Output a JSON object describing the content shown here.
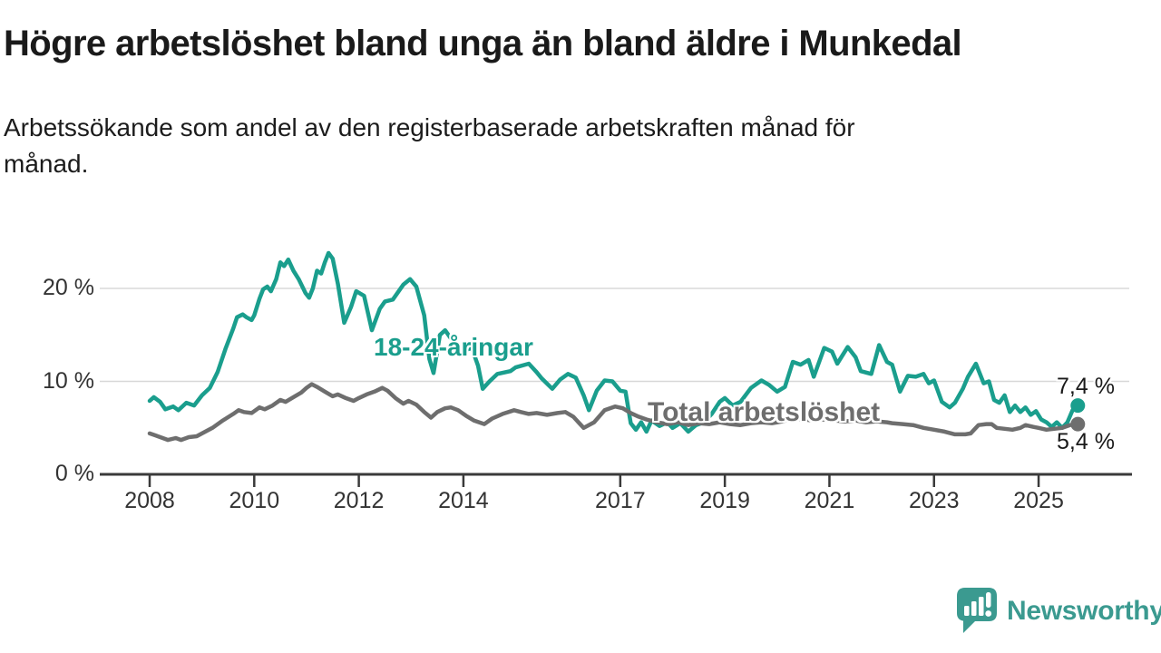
{
  "title": "Högre arbetslöshet bland unga än bland äldre i Munkedal",
  "subtitle": {
    "lines": [
      "Arbetssökande som andel av den registerbaserade arbetskraften månad för",
      "månad."
    ]
  },
  "branding": {
    "name": "Newsworthy",
    "icon": "chart-speech-bubble-icon",
    "color": "#3b9a90"
  },
  "colors": {
    "young_series": "#1a9e8d",
    "total_series": "#6e6e6e",
    "gridline": "#d8d8d8",
    "axis": "#3a3a3a",
    "text": "#1a1a1a"
  },
  "chart_data": {
    "type": "line",
    "title": "Högre arbetslöshet bland unga än bland äldre i Munkedal",
    "subtitle": "Arbetssökande som andel av den registerbaserade arbetskraften månad för månad.",
    "xlabel": "",
    "ylabel": "",
    "grid": "horizontal",
    "legend_position": "inline-labels",
    "xlim": [
      2007.0,
      2026.8
    ],
    "ylim": [
      0,
      25
    ],
    "x_ticks": [
      2008,
      2010,
      2012,
      2014,
      2017,
      2019,
      2021,
      2023,
      2025
    ],
    "y_ticks": [
      {
        "value": 20,
        "label": "20 %"
      },
      {
        "value": 10,
        "label": "10 %"
      },
      {
        "value": 0,
        "label": "0 %"
      }
    ],
    "series": [
      {
        "name": "18-24-åringar",
        "color": "#1a9e8d",
        "end_label": "7,4 %",
        "end_value": 7.4,
        "points": [
          [
            2008.0,
            7.9
          ],
          [
            2008.08,
            8.3
          ],
          [
            2008.2,
            7.8
          ],
          [
            2008.3,
            7.0
          ],
          [
            2008.45,
            7.3
          ],
          [
            2008.55,
            6.9
          ],
          [
            2008.7,
            7.7
          ],
          [
            2008.85,
            7.4
          ],
          [
            2009.0,
            8.5
          ],
          [
            2009.15,
            9.3
          ],
          [
            2009.3,
            11.0
          ],
          [
            2009.45,
            13.5
          ],
          [
            2009.6,
            15.7
          ],
          [
            2009.67,
            16.9
          ],
          [
            2009.78,
            17.2
          ],
          [
            2009.85,
            16.9
          ],
          [
            2009.95,
            16.6
          ],
          [
            2010.0,
            17.1
          ],
          [
            2010.1,
            18.9
          ],
          [
            2010.17,
            19.9
          ],
          [
            2010.25,
            20.2
          ],
          [
            2010.32,
            19.7
          ],
          [
            2010.42,
            21.0
          ],
          [
            2010.5,
            22.8
          ],
          [
            2010.57,
            22.4
          ],
          [
            2010.65,
            23.1
          ],
          [
            2010.75,
            21.9
          ],
          [
            2010.85,
            21.0
          ],
          [
            2010.98,
            19.5
          ],
          [
            2011.05,
            19.0
          ],
          [
            2011.12,
            20.0
          ],
          [
            2011.2,
            21.9
          ],
          [
            2011.28,
            21.6
          ],
          [
            2011.35,
            22.8
          ],
          [
            2011.42,
            23.8
          ],
          [
            2011.5,
            23.2
          ],
          [
            2011.6,
            20.5
          ],
          [
            2011.72,
            16.3
          ],
          [
            2011.85,
            18.0
          ],
          [
            2011.95,
            19.7
          ],
          [
            2012.1,
            19.2
          ],
          [
            2012.25,
            15.5
          ],
          [
            2012.4,
            17.8
          ],
          [
            2012.5,
            18.6
          ],
          [
            2012.65,
            18.8
          ],
          [
            2012.85,
            20.4
          ],
          [
            2012.98,
            21.0
          ],
          [
            2013.1,
            20.2
          ],
          [
            2013.25,
            17.1
          ],
          [
            2013.35,
            12.4
          ],
          [
            2013.43,
            10.9
          ],
          [
            2013.55,
            15.0
          ],
          [
            2013.65,
            15.5
          ],
          [
            2013.8,
            14.3
          ],
          [
            2014.0,
            13.3
          ],
          [
            2014.16,
            13.6
          ],
          [
            2014.28,
            11.7
          ],
          [
            2014.37,
            9.2
          ],
          [
            2014.5,
            10.0
          ],
          [
            2014.65,
            10.8
          ],
          [
            2014.9,
            11.1
          ],
          [
            2015.0,
            11.5
          ],
          [
            2015.25,
            11.9
          ],
          [
            2015.4,
            11.0
          ],
          [
            2015.5,
            10.3
          ],
          [
            2015.7,
            9.2
          ],
          [
            2015.85,
            10.2
          ],
          [
            2016.0,
            10.8
          ],
          [
            2016.15,
            10.4
          ],
          [
            2016.3,
            8.5
          ],
          [
            2016.4,
            6.9
          ],
          [
            2016.55,
            9.0
          ],
          [
            2016.7,
            10.1
          ],
          [
            2016.85,
            10.0
          ],
          [
            2017.0,
            9.0
          ],
          [
            2017.1,
            8.9
          ],
          [
            2017.2,
            5.5
          ],
          [
            2017.3,
            4.8
          ],
          [
            2017.4,
            5.6
          ],
          [
            2017.5,
            4.6
          ],
          [
            2017.6,
            5.8
          ],
          [
            2017.75,
            5.2
          ],
          [
            2017.9,
            5.6
          ],
          [
            2018.0,
            5.0
          ],
          [
            2018.15,
            5.5
          ],
          [
            2018.3,
            4.6
          ],
          [
            2018.45,
            5.3
          ],
          [
            2018.6,
            5.6
          ],
          [
            2018.75,
            6.5
          ],
          [
            2018.9,
            7.8
          ],
          [
            2019.0,
            8.2
          ],
          [
            2019.15,
            7.4
          ],
          [
            2019.3,
            7.8
          ],
          [
            2019.5,
            9.3
          ],
          [
            2019.7,
            10.1
          ],
          [
            2019.85,
            9.6
          ],
          [
            2020.0,
            8.9
          ],
          [
            2020.15,
            9.4
          ],
          [
            2020.3,
            12.1
          ],
          [
            2020.45,
            11.8
          ],
          [
            2020.6,
            12.3
          ],
          [
            2020.7,
            10.5
          ],
          [
            2020.9,
            13.6
          ],
          [
            2021.05,
            13.2
          ],
          [
            2021.15,
            11.9
          ],
          [
            2021.35,
            13.7
          ],
          [
            2021.5,
            12.6
          ],
          [
            2021.6,
            11.1
          ],
          [
            2021.8,
            10.8
          ],
          [
            2021.95,
            13.9
          ],
          [
            2022.1,
            12.1
          ],
          [
            2022.2,
            11.8
          ],
          [
            2022.35,
            8.9
          ],
          [
            2022.5,
            10.6
          ],
          [
            2022.65,
            10.5
          ],
          [
            2022.8,
            10.8
          ],
          [
            2022.9,
            9.8
          ],
          [
            2023.0,
            10.1
          ],
          [
            2023.15,
            7.8
          ],
          [
            2023.3,
            7.2
          ],
          [
            2023.4,
            7.7
          ],
          [
            2023.55,
            9.2
          ],
          [
            2023.65,
            10.5
          ],
          [
            2023.8,
            11.9
          ],
          [
            2023.95,
            9.8
          ],
          [
            2024.05,
            10.0
          ],
          [
            2024.15,
            8.0
          ],
          [
            2024.25,
            7.7
          ],
          [
            2024.35,
            8.5
          ],
          [
            2024.45,
            6.7
          ],
          [
            2024.55,
            7.4
          ],
          [
            2024.65,
            6.7
          ],
          [
            2024.75,
            7.2
          ],
          [
            2024.85,
            6.4
          ],
          [
            2024.95,
            6.8
          ],
          [
            2025.05,
            5.9
          ],
          [
            2025.15,
            5.6
          ],
          [
            2025.25,
            5.1
          ],
          [
            2025.35,
            5.6
          ],
          [
            2025.45,
            5.0
          ],
          [
            2025.55,
            5.6
          ],
          [
            2025.65,
            6.9
          ],
          [
            2025.75,
            7.4
          ]
        ]
      },
      {
        "name": "Total arbetslöshet",
        "color": "#6e6e6e",
        "end_label": "5,4 %",
        "end_value": 5.4,
        "points": [
          [
            2008.0,
            4.4
          ],
          [
            2008.1,
            4.2
          ],
          [
            2008.25,
            3.9
          ],
          [
            2008.35,
            3.7
          ],
          [
            2008.5,
            3.9
          ],
          [
            2008.6,
            3.7
          ],
          [
            2008.75,
            4.0
          ],
          [
            2008.9,
            4.1
          ],
          [
            2009.0,
            4.4
          ],
          [
            2009.2,
            5.0
          ],
          [
            2009.4,
            5.8
          ],
          [
            2009.6,
            6.5
          ],
          [
            2009.7,
            6.9
          ],
          [
            2009.8,
            6.7
          ],
          [
            2009.95,
            6.6
          ],
          [
            2010.1,
            7.2
          ],
          [
            2010.2,
            7.0
          ],
          [
            2010.35,
            7.4
          ],
          [
            2010.5,
            8.0
          ],
          [
            2010.6,
            7.8
          ],
          [
            2010.75,
            8.3
          ],
          [
            2010.9,
            8.8
          ],
          [
            2011.0,
            9.3
          ],
          [
            2011.1,
            9.7
          ],
          [
            2011.2,
            9.4
          ],
          [
            2011.35,
            8.9
          ],
          [
            2011.5,
            8.4
          ],
          [
            2011.6,
            8.6
          ],
          [
            2011.75,
            8.2
          ],
          [
            2011.9,
            7.9
          ],
          [
            2012.0,
            8.2
          ],
          [
            2012.15,
            8.6
          ],
          [
            2012.3,
            8.9
          ],
          [
            2012.45,
            9.3
          ],
          [
            2012.55,
            9.0
          ],
          [
            2012.7,
            8.2
          ],
          [
            2012.85,
            7.6
          ],
          [
            2012.95,
            7.9
          ],
          [
            2013.1,
            7.5
          ],
          [
            2013.25,
            6.7
          ],
          [
            2013.38,
            6.1
          ],
          [
            2013.5,
            6.7
          ],
          [
            2013.65,
            7.1
          ],
          [
            2013.76,
            7.2
          ],
          [
            2013.9,
            6.9
          ],
          [
            2014.05,
            6.3
          ],
          [
            2014.2,
            5.8
          ],
          [
            2014.4,
            5.4
          ],
          [
            2014.55,
            6.0
          ],
          [
            2014.75,
            6.5
          ],
          [
            2014.97,
            6.9
          ],
          [
            2015.1,
            6.7
          ],
          [
            2015.25,
            6.5
          ],
          [
            2015.4,
            6.6
          ],
          [
            2015.6,
            6.4
          ],
          [
            2015.8,
            6.6
          ],
          [
            2015.95,
            6.7
          ],
          [
            2016.1,
            6.2
          ],
          [
            2016.3,
            5.0
          ],
          [
            2016.5,
            5.6
          ],
          [
            2016.7,
            6.9
          ],
          [
            2016.9,
            7.3
          ],
          [
            2017.05,
            7.1
          ],
          [
            2017.2,
            6.6
          ],
          [
            2017.35,
            6.2
          ],
          [
            2017.5,
            5.9
          ],
          [
            2017.7,
            5.6
          ],
          [
            2017.9,
            5.4
          ],
          [
            2018.1,
            5.6
          ],
          [
            2018.3,
            5.3
          ],
          [
            2018.5,
            5.5
          ],
          [
            2018.7,
            5.4
          ],
          [
            2018.9,
            5.6
          ],
          [
            2019.1,
            5.4
          ],
          [
            2019.3,
            5.3
          ],
          [
            2019.5,
            5.5
          ],
          [
            2019.7,
            5.6
          ],
          [
            2019.9,
            5.5
          ],
          [
            2020.1,
            5.7
          ],
          [
            2020.3,
            6.0
          ],
          [
            2020.5,
            5.9
          ],
          [
            2020.7,
            5.8
          ],
          [
            2020.9,
            5.9
          ],
          [
            2021.1,
            5.8
          ],
          [
            2021.3,
            5.7
          ],
          [
            2021.5,
            5.8
          ],
          [
            2021.7,
            5.6
          ],
          [
            2021.9,
            5.7
          ],
          [
            2022.1,
            5.6
          ],
          [
            2022.2,
            5.5
          ],
          [
            2022.4,
            5.4
          ],
          [
            2022.6,
            5.3
          ],
          [
            2022.8,
            5.0
          ],
          [
            2023.0,
            4.8
          ],
          [
            2023.2,
            4.6
          ],
          [
            2023.4,
            4.3
          ],
          [
            2023.6,
            4.3
          ],
          [
            2023.7,
            4.4
          ],
          [
            2023.85,
            5.3
          ],
          [
            2024.0,
            5.4
          ],
          [
            2024.1,
            5.4
          ],
          [
            2024.2,
            5.0
          ],
          [
            2024.35,
            4.9
          ],
          [
            2024.5,
            4.8
          ],
          [
            2024.65,
            5.0
          ],
          [
            2024.75,
            5.3
          ],
          [
            2024.9,
            5.1
          ],
          [
            2025.0,
            5.0
          ],
          [
            2025.15,
            4.8
          ],
          [
            2025.3,
            4.9
          ],
          [
            2025.45,
            5.0
          ],
          [
            2025.6,
            5.3
          ],
          [
            2025.75,
            5.4
          ]
        ]
      }
    ]
  }
}
